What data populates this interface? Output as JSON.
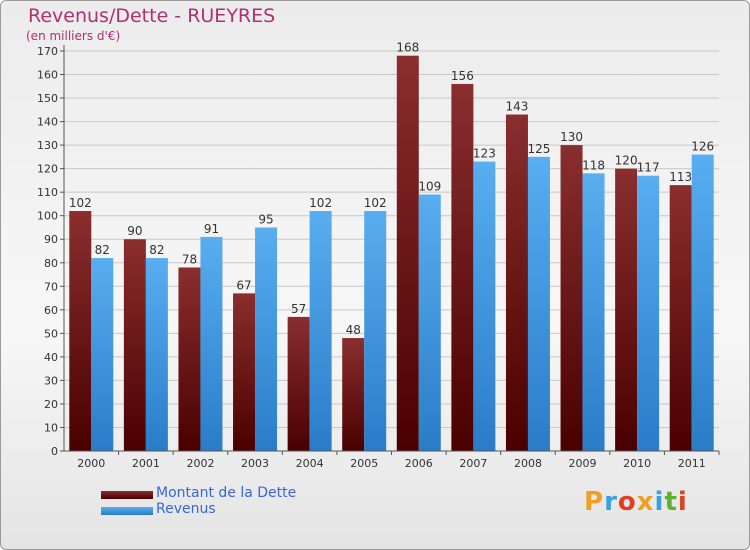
{
  "header": {
    "title": "Revenus/Dette - RUEYRES",
    "subtitle": "(en milliers d'€)"
  },
  "legend": [
    {
      "label": "Montant de la Dette",
      "color": "#6b1212"
    },
    {
      "label": "Revenus",
      "color": "#3f95df"
    }
  ],
  "brand": {
    "text": "Proxiti",
    "colors": [
      "#f0a020",
      "#3aa0e0",
      "#e04020",
      "#f0a020",
      "#3aa0e0",
      "#60b030",
      "#e04020"
    ]
  },
  "chart_data": {
    "type": "bar",
    "categories": [
      "2000",
      "2001",
      "2002",
      "2003",
      "2004",
      "2005",
      "2006",
      "2007",
      "2008",
      "2009",
      "2010",
      "2011"
    ],
    "series": [
      {
        "name": "Montant de la Dette",
        "values": [
          102,
          90,
          78,
          67,
          57,
          48,
          168,
          156,
          143,
          130,
          120,
          113
        ],
        "color": "#6b1212"
      },
      {
        "name": "Revenus",
        "values": [
          82,
          82,
          91,
          95,
          102,
          102,
          109,
          123,
          125,
          118,
          117,
          126
        ],
        "color": "#3f95df"
      }
    ],
    "ylim": [
      0,
      170
    ],
    "yticks": [
      0,
      10,
      20,
      30,
      40,
      50,
      60,
      70,
      80,
      90,
      100,
      110,
      120,
      130,
      140,
      150,
      160,
      170
    ],
    "grid": true,
    "legend_position": "bottom-left"
  }
}
